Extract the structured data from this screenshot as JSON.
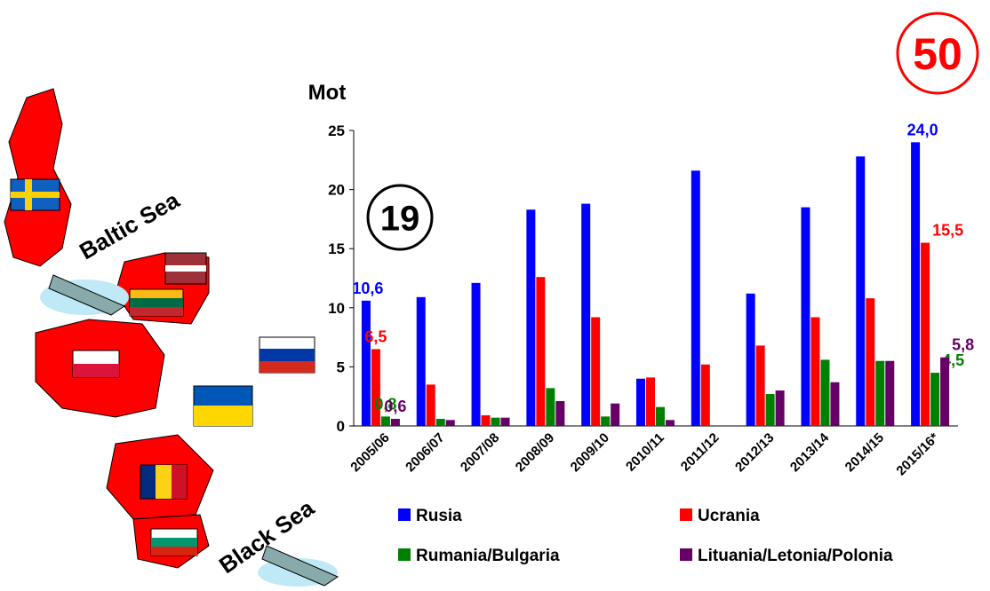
{
  "chart_data": {
    "type": "bar",
    "y_label": "Mot",
    "categories": [
      "2005/06",
      "2006/07",
      "2007/08",
      "2008/09",
      "2009/10",
      "2010/11",
      "2011/12",
      "2012/13",
      "2013/14",
      "2014/15",
      "2015/16*"
    ],
    "series": [
      {
        "name": "Rusia",
        "color": "#0000ff",
        "values": [
          10.6,
          10.9,
          12.1,
          18.3,
          18.8,
          4.0,
          21.6,
          11.2,
          18.5,
          22.8,
          24.0
        ],
        "value_labels": [
          "10,6",
          null,
          null,
          null,
          null,
          null,
          null,
          null,
          null,
          null,
          "24,0"
        ]
      },
      {
        "name": "Ucrania",
        "color": "#ff0000",
        "values": [
          6.5,
          3.5,
          0.9,
          12.6,
          9.2,
          4.1,
          5.2,
          6.8,
          9.2,
          10.8,
          15.5
        ],
        "value_labels": [
          "6,5",
          null,
          null,
          null,
          null,
          null,
          null,
          null,
          null,
          null,
          "15,5"
        ]
      },
      {
        "name": "Rumania/Bulgaria",
        "color": "#008000",
        "values": [
          0.8,
          0.6,
          0.7,
          3.2,
          0.8,
          1.6,
          null,
          2.7,
          5.6,
          5.5,
          4.5
        ],
        "value_labels": [
          "0,8",
          null,
          null,
          null,
          null,
          null,
          null,
          null,
          null,
          null,
          "4,5"
        ]
      },
      {
        "name": "Lituania/Letonia/Polonia",
        "color": "#660066",
        "values": [
          0.6,
          0.5,
          0.7,
          2.1,
          1.9,
          0.5,
          null,
          3.0,
          3.7,
          5.5,
          5.8
        ],
        "value_labels": [
          "0,6",
          null,
          null,
          null,
          null,
          null,
          null,
          null,
          null,
          null,
          "5,8"
        ]
      }
    ],
    "ylim": [
      0,
      25
    ],
    "yticks": [
      0,
      5,
      10,
      15,
      20,
      25
    ],
    "grid": false,
    "annotations": [
      {
        "text": "19",
        "color": "#000000"
      },
      {
        "text": "50",
        "color": "#ff0000"
      }
    ]
  },
  "map_labels": [
    "Baltic Sea",
    "Black Sea"
  ]
}
